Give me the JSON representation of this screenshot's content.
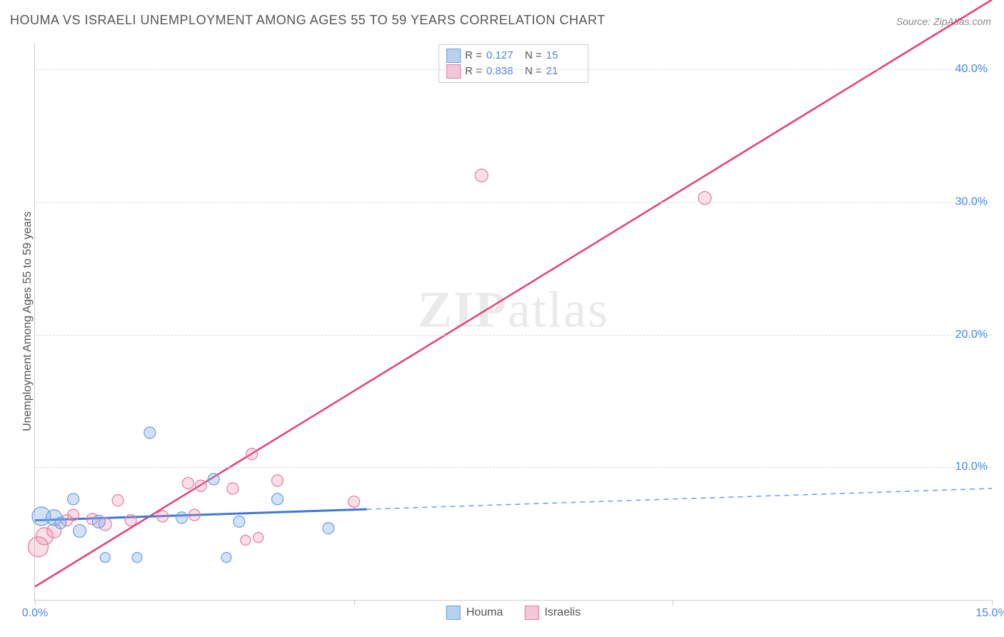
{
  "title": "HOUMA VS ISRAELI UNEMPLOYMENT AMONG AGES 55 TO 59 YEARS CORRELATION CHART",
  "source": "Source: ZipAtlas.com",
  "watermark_1": "ZIP",
  "watermark_2": "atlas",
  "chart": {
    "type": "scatter-correlation",
    "ylabel": "Unemployment Among Ages 55 to 59 years",
    "xlim": [
      0,
      15
    ],
    "ylim": [
      0,
      42
    ],
    "xticks": [
      0,
      5,
      10,
      15
    ],
    "xtick_labels": [
      "0.0%",
      "",
      "",
      "15.0%"
    ],
    "yticks": [
      10,
      20,
      30,
      40
    ],
    "ytick_labels": [
      "10.0%",
      "20.0%",
      "30.0%",
      "40.0%"
    ],
    "background_color": "#ffffff",
    "grid_color": "#dddddd",
    "axis_color": "#cccccc",
    "tick_label_color": "#4a86e8",
    "axis_label_color": "#555555",
    "series": [
      {
        "name": "Houma",
        "color_fill": "rgba(123,171,236,0.35)",
        "color_stroke": "#6a9ee0",
        "swatch_fill": "#b8d0f0",
        "swatch_stroke": "#6a9ee0",
        "R": "0.127",
        "N": "15",
        "marker_r_min": 6,
        "marker_r_max": 13,
        "line": {
          "solid_from_x": 0,
          "solid_to_x": 5.2,
          "y_intercept": 6.0,
          "slope": 0.16,
          "stroke": "#3e78d6",
          "stroke_width": 3,
          "dash_stroke": "#6a9ee0",
          "dash_width": 1.5
        },
        "points": [
          {
            "x": 0.1,
            "y": 6.3,
            "r": 13
          },
          {
            "x": 0.3,
            "y": 6.2,
            "r": 11
          },
          {
            "x": 0.4,
            "y": 5.8,
            "r": 8
          },
          {
            "x": 0.6,
            "y": 7.6,
            "r": 8
          },
          {
            "x": 0.7,
            "y": 5.2,
            "r": 9
          },
          {
            "x": 1.0,
            "y": 5.9,
            "r": 9
          },
          {
            "x": 1.1,
            "y": 3.2,
            "r": 7
          },
          {
            "x": 1.6,
            "y": 3.2,
            "r": 7
          },
          {
            "x": 1.8,
            "y": 12.6,
            "r": 8
          },
          {
            "x": 2.3,
            "y": 6.2,
            "r": 8
          },
          {
            "x": 2.8,
            "y": 9.1,
            "r": 8
          },
          {
            "x": 3.0,
            "y": 3.2,
            "r": 7
          },
          {
            "x": 3.2,
            "y": 5.9,
            "r": 8
          },
          {
            "x": 3.8,
            "y": 7.6,
            "r": 8
          },
          {
            "x": 4.6,
            "y": 5.4,
            "r": 8
          }
        ]
      },
      {
        "name": "Israelis",
        "color_fill": "rgba(236,140,170,0.28)",
        "color_stroke": "#e37ba0",
        "swatch_fill": "#f3c7d5",
        "swatch_stroke": "#e37ba0",
        "R": "0.838",
        "N": "21",
        "marker_r_min": 6,
        "marker_r_max": 14,
        "line": {
          "solid_from_x": 0,
          "solid_to_x": 15,
          "y_intercept": 1.0,
          "slope": 2.95,
          "stroke": "#e63e7a",
          "stroke_width": 2.5
        },
        "points": [
          {
            "x": 0.05,
            "y": 4.0,
            "r": 14
          },
          {
            "x": 0.15,
            "y": 4.8,
            "r": 12
          },
          {
            "x": 0.3,
            "y": 5.2,
            "r": 10
          },
          {
            "x": 0.5,
            "y": 6.0,
            "r": 8
          },
          {
            "x": 0.6,
            "y": 6.4,
            "r": 8
          },
          {
            "x": 0.9,
            "y": 6.1,
            "r": 8
          },
          {
            "x": 1.1,
            "y": 5.7,
            "r": 9
          },
          {
            "x": 1.3,
            "y": 7.5,
            "r": 8
          },
          {
            "x": 1.5,
            "y": 6.0,
            "r": 8
          },
          {
            "x": 2.0,
            "y": 6.3,
            "r": 8
          },
          {
            "x": 2.4,
            "y": 8.8,
            "r": 8
          },
          {
            "x": 2.5,
            "y": 6.4,
            "r": 8
          },
          {
            "x": 2.6,
            "y": 8.6,
            "r": 8
          },
          {
            "x": 3.1,
            "y": 8.4,
            "r": 8
          },
          {
            "x": 3.3,
            "y": 4.5,
            "r": 7
          },
          {
            "x": 3.4,
            "y": 11.0,
            "r": 8
          },
          {
            "x": 3.5,
            "y": 4.7,
            "r": 7
          },
          {
            "x": 3.8,
            "y": 9.0,
            "r": 8
          },
          {
            "x": 5.0,
            "y": 7.4,
            "r": 8
          },
          {
            "x": 7.0,
            "y": 32.0,
            "r": 9
          },
          {
            "x": 10.5,
            "y": 30.3,
            "r": 9
          }
        ]
      }
    ],
    "legend_labels": {
      "R": "R  =",
      "N": "N  ="
    },
    "bottom_legend": [
      "Houma",
      "Israelis"
    ]
  }
}
